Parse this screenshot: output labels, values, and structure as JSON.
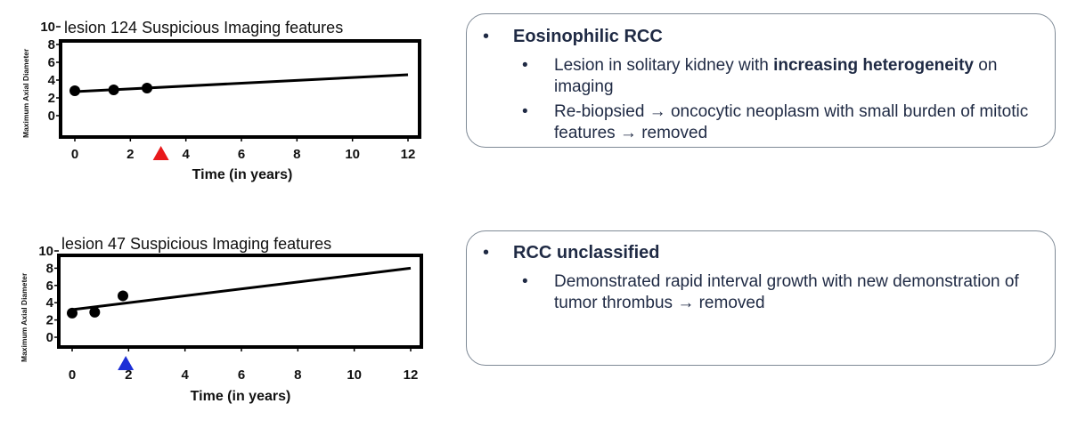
{
  "charts": [
    {
      "title": "lesion 124 Suspicious Imaging features",
      "ylabel": "Maximum Axial Diameter",
      "xlabel": "Time (in years)",
      "marker_color": "#e8191b",
      "marker_x": 3.1
    },
    {
      "title": "lesion 47 Suspicious Imaging features",
      "ylabel": "Maximum Axial Diameter",
      "xlabel": "Time (in years)",
      "marker_color": "#1c2fd6",
      "marker_x": 1.9
    }
  ],
  "chart_data": [
    {
      "type": "scatter",
      "title": "lesion 124 Suspicious Imaging features",
      "xlabel": "Time (in years)",
      "ylabel": "Maximum Axial Diameter",
      "xlim": [
        0,
        12
      ],
      "ylim": [
        0,
        10
      ],
      "xticks": [
        0,
        2,
        4,
        6,
        8,
        10,
        12
      ],
      "yticks": [
        0,
        2,
        4,
        6,
        8,
        10
      ],
      "points": [
        {
          "x": 0,
          "y": 2.8
        },
        {
          "x": 1.4,
          "y": 2.9
        },
        {
          "x": 2.6,
          "y": 3.1
        }
      ],
      "trend_line": [
        {
          "x": 0,
          "y": 2.7
        },
        {
          "x": 12,
          "y": 4.6
        }
      ],
      "event_marker_x": 3.1
    },
    {
      "type": "scatter",
      "title": "lesion 47 Suspicious Imaging features",
      "xlabel": "Time (in years)",
      "ylabel": "Maximum Axial Diameter",
      "xlim": [
        0,
        12
      ],
      "ylim": [
        0,
        10
      ],
      "xticks": [
        0,
        2,
        4,
        6,
        8,
        10,
        12
      ],
      "yticks": [
        0,
        2,
        4,
        6,
        8,
        10
      ],
      "points": [
        {
          "x": 0,
          "y": 2.8
        },
        {
          "x": 0.8,
          "y": 2.9
        },
        {
          "x": 1.8,
          "y": 4.8
        }
      ],
      "trend_line": [
        {
          "x": 0,
          "y": 3.2
        },
        {
          "x": 12,
          "y": 8.0
        }
      ],
      "event_marker_x": 1.9
    }
  ],
  "panels": [
    {
      "heading": "Eosinophilic RCC",
      "items": [
        {
          "pre": "Lesion in solitary kidney with ",
          "bold": "increasing heterogeneity",
          "post": " on imaging"
        },
        {
          "pre": "Re-biopsied → oncocytic neoplasm with small burden of mitotic features → removed",
          "bold": "",
          "post": ""
        }
      ]
    },
    {
      "heading": "RCC unclassified",
      "items": [
        {
          "pre": "Demonstrated rapid interval growth with new demonstration of tumor thrombus  →  removed",
          "bold": "",
          "post": ""
        }
      ]
    }
  ],
  "bullet_l1": "•",
  "bullet_l2": "•"
}
